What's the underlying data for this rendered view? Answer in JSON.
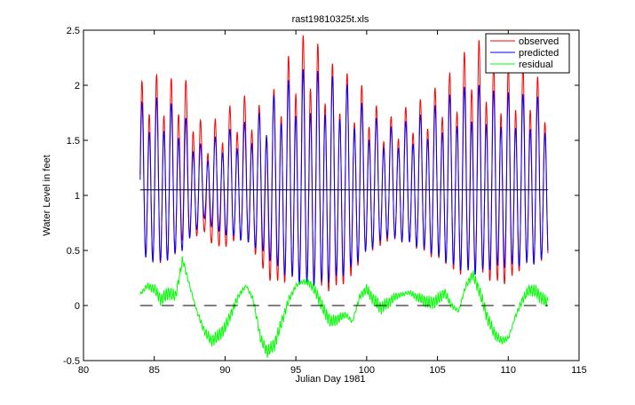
{
  "chart_data": {
    "type": "line",
    "title": "rast19810325t.xls",
    "xlabel": "Julian Day  1981",
    "ylabel": "Water Level in feet",
    "xlim": [
      80,
      115
    ],
    "ylim": [
      -0.5,
      2.5
    ],
    "xticks": [
      80,
      85,
      90,
      95,
      100,
      105,
      110,
      115
    ],
    "xtick_labels": [
      "80",
      "85",
      "90",
      "95",
      "100",
      "105",
      "110",
      "115"
    ],
    "yticks": [
      -0.5,
      0,
      0.5,
      1,
      1.5,
      2,
      2.5
    ],
    "ytick_labels": [
      "-0.5",
      "0",
      "0.5",
      "1",
      "1.5",
      "2",
      "2.5"
    ],
    "grid": false,
    "legend_position": "top-right",
    "x_range": [
      84.0,
      112.8
    ],
    "tidal_period_days": 0.5175,
    "amplitude_envelope": {
      "x": [
        84.0,
        85.5,
        87.0,
        88.5,
        89.5,
        91.0,
        92.5,
        94.0,
        95.5,
        97.0,
        98.5,
        100.0,
        101.5,
        103.0,
        104.5,
        106.0,
        107.5,
        109.0,
        110.5,
        112.0,
        112.8
      ],
      "values": [
        0.65,
        0.7,
        0.58,
        0.3,
        0.42,
        0.48,
        0.58,
        0.78,
        0.9,
        0.88,
        0.8,
        0.6,
        0.46,
        0.52,
        0.6,
        0.72,
        0.8,
        0.74,
        0.72,
        0.7,
        0.65
      ]
    },
    "observed_excess_envelope": {
      "x": [
        84.0,
        86.0,
        88.0,
        90.0,
        92.0,
        94.0,
        96.0,
        98.0,
        100.0,
        102.0,
        104.0,
        106.0,
        108.0,
        110.0,
        112.0,
        112.8
      ],
      "values": [
        0.12,
        0.15,
        0.22,
        0.22,
        0.12,
        0.16,
        0.2,
        0.12,
        0.1,
        0.06,
        0.1,
        0.16,
        0.3,
        0.3,
        0.12,
        0.1
      ]
    },
    "series": [
      {
        "name": "observed",
        "color": "#ff0000",
        "description": "measured water level (feet)"
      },
      {
        "name": "predicted",
        "color": "#0000ff",
        "description": "predicted tidal water level (feet)"
      },
      {
        "name": "residual",
        "color": "#00ff00",
        "x": [
          84.0,
          84.5,
          85.0,
          85.5,
          86.0,
          86.5,
          87.0,
          87.5,
          88.0,
          88.5,
          89.0,
          89.5,
          90.0,
          90.5,
          91.0,
          91.5,
          92.0,
          92.5,
          93.0,
          93.5,
          94.0,
          94.5,
          95.0,
          95.5,
          96.0,
          96.5,
          97.0,
          97.5,
          98.0,
          98.5,
          99.0,
          99.5,
          100.0,
          100.5,
          101.0,
          101.5,
          102.0,
          102.5,
          103.0,
          103.5,
          104.0,
          104.5,
          105.0,
          105.5,
          106.0,
          106.5,
          107.0,
          107.5,
          108.0,
          108.5,
          109.0,
          109.5,
          110.0,
          110.5,
          111.0,
          111.5,
          112.0,
          112.5,
          112.8
        ],
        "values": [
          0.1,
          0.18,
          0.15,
          0.05,
          0.12,
          0.08,
          0.42,
          0.18,
          -0.05,
          -0.22,
          -0.32,
          -0.28,
          -0.2,
          -0.05,
          0.1,
          0.18,
          0.05,
          -0.3,
          -0.42,
          -0.35,
          -0.15,
          0.05,
          0.18,
          0.22,
          0.2,
          0.1,
          -0.05,
          -0.15,
          -0.12,
          -0.08,
          -0.15,
          0.08,
          0.15,
          0.05,
          -0.02,
          0.02,
          0.08,
          0.1,
          0.12,
          0.08,
          0.05,
          0.02,
          0.05,
          0.12,
          0.0,
          -0.05,
          0.18,
          0.28,
          0.12,
          -0.1,
          -0.25,
          -0.32,
          -0.3,
          -0.1,
          0.05,
          0.15,
          0.12,
          0.05,
          0.03
        ]
      }
    ],
    "reference_lines": [
      {
        "name": "mean water level",
        "y": 1.05,
        "x": [
          84.0,
          112.8
        ],
        "style": "solid",
        "color": "#000000"
      },
      {
        "name": "zero line",
        "y": 0,
        "x": [
          84.0,
          112.8
        ],
        "style": "dashed",
        "color": "#000000"
      }
    ]
  }
}
